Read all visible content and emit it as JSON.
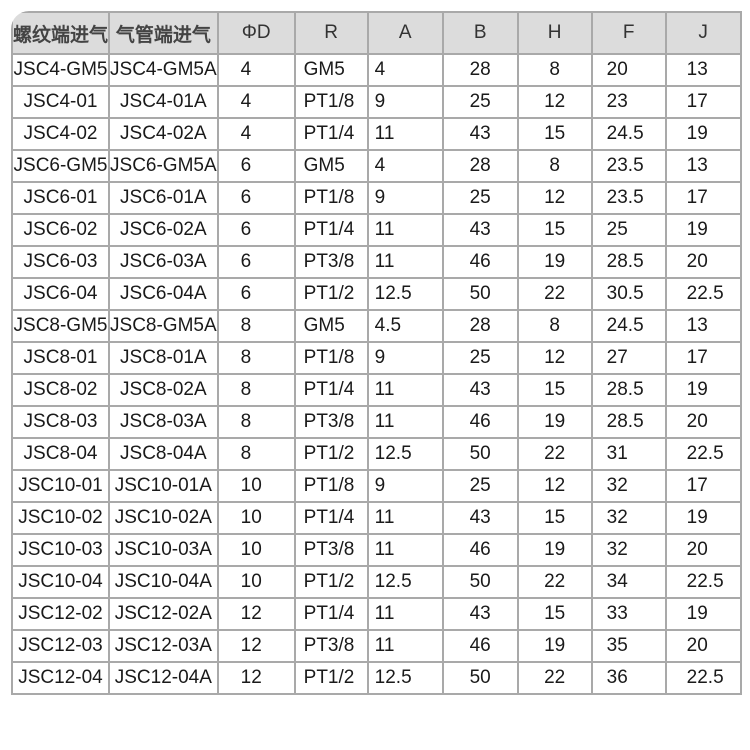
{
  "headers": [
    "螺纹端进气",
    "气管端进气",
    "ΦD",
    "R",
    "A",
    "B",
    "H",
    "F",
    "J"
  ],
  "rows": [
    [
      "JSC4-GM5",
      "JSC4-GM5A",
      "4",
      "GM5",
      "4",
      "28",
      "8",
      "20",
      "13"
    ],
    [
      "JSC4-01",
      "JSC4-01A",
      "4",
      "PT1/8",
      "9",
      "25",
      "12",
      "23",
      "17"
    ],
    [
      "JSC4-02",
      "JSC4-02A",
      "4",
      "PT1/4",
      "11",
      "43",
      "15",
      "24.5",
      "19"
    ],
    [
      "JSC6-GM5",
      "JSC6-GM5A",
      "6",
      "GM5",
      "4",
      "28",
      "8",
      "23.5",
      "13"
    ],
    [
      "JSC6-01",
      "JSC6-01A",
      "6",
      "PT1/8",
      "9",
      "25",
      "12",
      "23.5",
      "17"
    ],
    [
      "JSC6-02",
      "JSC6-02A",
      "6",
      "PT1/4",
      "11",
      "43",
      "15",
      "25",
      "19"
    ],
    [
      "JSC6-03",
      "JSC6-03A",
      "6",
      "PT3/8",
      "11",
      "46",
      "19",
      "28.5",
      "20"
    ],
    [
      "JSC6-04",
      "JSC6-04A",
      "6",
      "PT1/2",
      "12.5",
      "50",
      "22",
      "30.5",
      "22.5"
    ],
    [
      "JSC8-GM5",
      "JSC8-GM5A",
      "8",
      "GM5",
      "4.5",
      "28",
      "8",
      "24.5",
      "13"
    ],
    [
      "JSC8-01",
      "JSC8-01A",
      "8",
      "PT1/8",
      "9",
      "25",
      "12",
      "27",
      "17"
    ],
    [
      "JSC8-02",
      "JSC8-02A",
      "8",
      "PT1/4",
      "11",
      "43",
      "15",
      "28.5",
      "19"
    ],
    [
      "JSC8-03",
      "JSC8-03A",
      "8",
      "PT3/8",
      "11",
      "46",
      "19",
      "28.5",
      "20"
    ],
    [
      "JSC8-04",
      "JSC8-04A",
      "8",
      "PT1/2",
      "12.5",
      "50",
      "22",
      "31",
      "22.5"
    ],
    [
      "JSC10-01",
      "JSC10-01A",
      "10",
      "PT1/8",
      "9",
      "25",
      "12",
      "32",
      "17"
    ],
    [
      "JSC10-02",
      "JSC10-02A",
      "10",
      "PT1/4",
      "11",
      "43",
      "15",
      "32",
      "19"
    ],
    [
      "JSC10-03",
      "JSC10-03A",
      "10",
      "PT3/8",
      "11",
      "46",
      "19",
      "32",
      "20"
    ],
    [
      "JSC10-04",
      "JSC10-04A",
      "10",
      "PT1/2",
      "12.5",
      "50",
      "22",
      "34",
      "22.5"
    ],
    [
      "JSC12-02",
      "JSC12-02A",
      "12",
      "PT1/4",
      "11",
      "43",
      "15",
      "33",
      "19"
    ],
    [
      "JSC12-03",
      "JSC12-03A",
      "12",
      "PT3/8",
      "11",
      "46",
      "19",
      "35",
      "20"
    ],
    [
      "JSC12-04",
      "JSC12-04A",
      "12",
      "PT1/2",
      "12.5",
      "50",
      "22",
      "36",
      "22.5"
    ]
  ]
}
